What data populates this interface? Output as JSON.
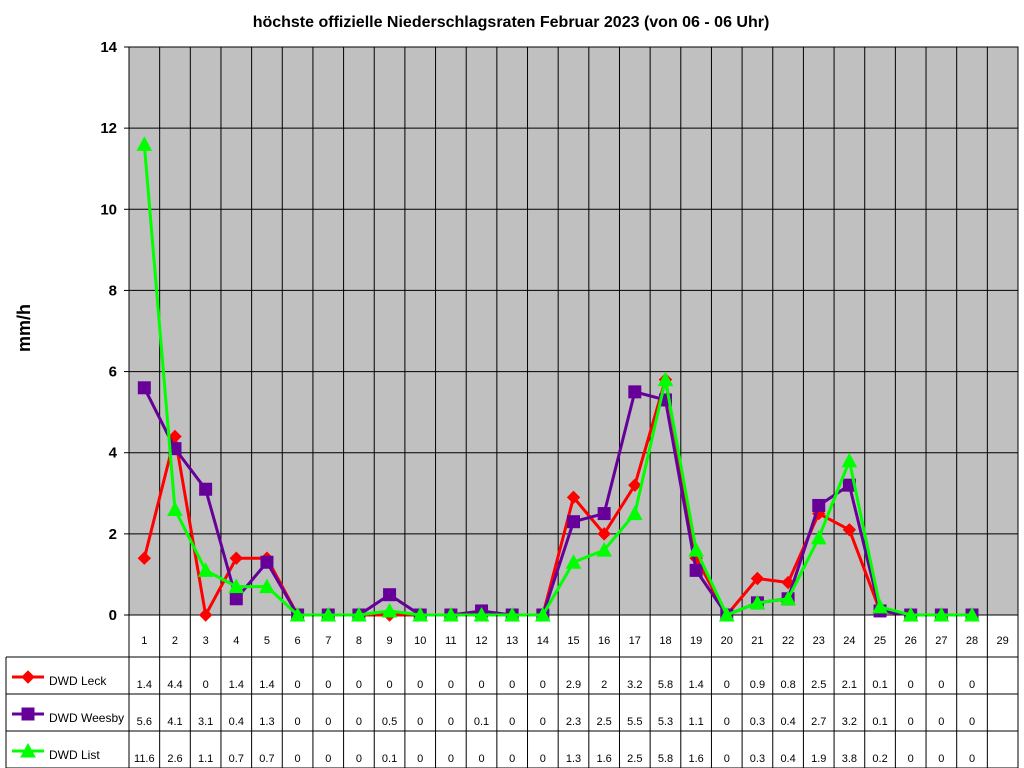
{
  "chart_data": {
    "type": "line",
    "title": "höchste offizielle Niederschlagsraten Februar 2023 (von 06 - 06 Uhr)",
    "ylabel": "mm/h",
    "xlabel": "",
    "ylim": [
      0,
      14
    ],
    "yticks": [
      0,
      2,
      4,
      6,
      8,
      10,
      12,
      14
    ],
    "grid": true,
    "legend": "data-table-left",
    "categories": [
      "1",
      "2",
      "3",
      "4",
      "5",
      "6",
      "7",
      "8",
      "9",
      "10",
      "11",
      "12",
      "13",
      "14",
      "15",
      "16",
      "17",
      "18",
      "19",
      "20",
      "21",
      "22",
      "23",
      "24",
      "25",
      "26",
      "27",
      "28",
      "29"
    ],
    "series": [
      {
        "name": "DWD Leck",
        "color": "#ff0000",
        "marker": "diamond",
        "values": [
          1.4,
          4.4,
          0,
          1.4,
          1.4,
          0,
          0,
          0,
          0,
          0,
          0,
          0,
          0,
          0,
          2.9,
          2,
          3.2,
          5.8,
          1.4,
          0,
          0.9,
          0.8,
          2.5,
          2.1,
          0.1,
          0,
          0,
          0,
          null
        ],
        "labels": [
          "1.4",
          "4.4",
          "0",
          "1.4",
          "1.4",
          "0",
          "0",
          "0",
          "0",
          "0",
          "0",
          "0",
          "0",
          "0",
          "2.9",
          "2",
          "3.2",
          "5.8",
          "1.4",
          "0",
          "0.9",
          "0.8",
          "2.5",
          "2.1",
          "0.1",
          "0",
          "0",
          "0",
          ""
        ]
      },
      {
        "name": "DWD Weesby",
        "color": "#660099",
        "marker": "square",
        "values": [
          5.6,
          4.1,
          3.1,
          0.4,
          1.3,
          0,
          0,
          0,
          0.5,
          0,
          0,
          0.1,
          0,
          0,
          2.3,
          2.5,
          5.5,
          5.3,
          1.1,
          0,
          0.3,
          0.4,
          2.7,
          3.2,
          0.1,
          0,
          0,
          0,
          null
        ],
        "labels": [
          "5.6",
          "4.1",
          "3.1",
          "0.4",
          "1.3",
          "0",
          "0",
          "0",
          "0.5",
          "0",
          "0",
          "0.1",
          "0",
          "0",
          "2.3",
          "2.5",
          "5.5",
          "5.3",
          "1.1",
          "0",
          "0.3",
          "0.4",
          "2.7",
          "3.2",
          "0.1",
          "0",
          "0",
          "0",
          ""
        ]
      },
      {
        "name": "DWD List",
        "color": "#00ff00",
        "marker": "triangle",
        "values": [
          11.6,
          2.6,
          1.1,
          0.7,
          0.7,
          0,
          0,
          0,
          0.1,
          0,
          0,
          0,
          0,
          0,
          1.3,
          1.6,
          2.5,
          5.8,
          1.6,
          0,
          0.3,
          0.4,
          1.9,
          3.8,
          0.2,
          0,
          0,
          0,
          null
        ],
        "labels": [
          "11.6",
          "2.6",
          "1.1",
          "0.7",
          "0.7",
          "0",
          "0",
          "0",
          "0.1",
          "0",
          "0",
          "0",
          "0",
          "0",
          "1.3",
          "1.6",
          "2.5",
          "5.8",
          "1.6",
          "0",
          "0.3",
          "0.4",
          "1.9",
          "3.8",
          "0.2",
          "0",
          "0",
          "0",
          ""
        ]
      }
    ],
    "colors": {
      "plot_background": "#c0c0c0",
      "grid": "#000000"
    }
  }
}
